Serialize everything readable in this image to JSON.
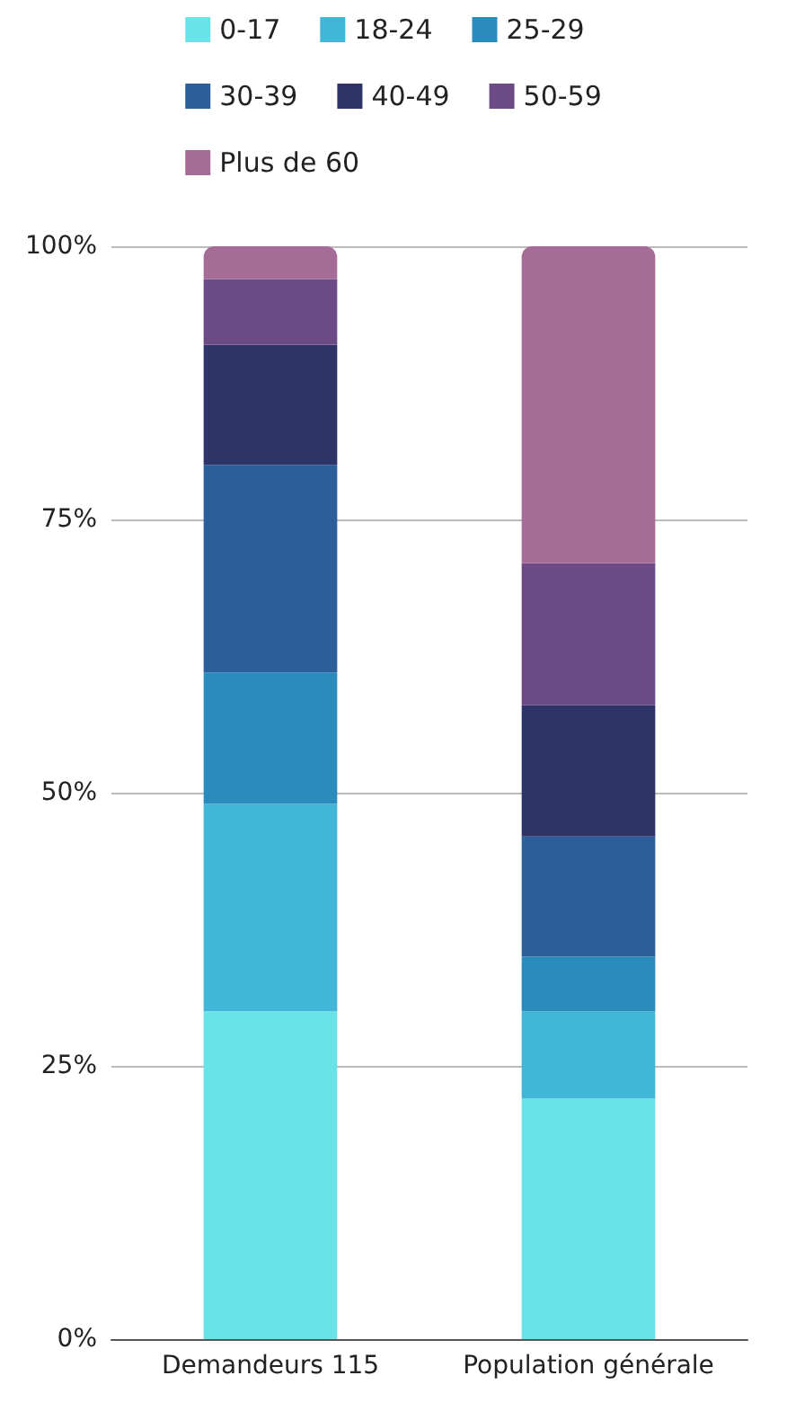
{
  "chart_data": {
    "type": "bar",
    "stacked": true,
    "categories": [
      "Demandeurs 115",
      "Population générale"
    ],
    "series": [
      {
        "name": "0-17",
        "color": "#6ae3e8",
        "values": [
          30,
          22
        ]
      },
      {
        "name": "18-24",
        "color": "#41b6d6",
        "values": [
          19,
          8
        ]
      },
      {
        "name": "25-29",
        "color": "#2a8bbd",
        "values": [
          12,
          5
        ]
      },
      {
        "name": "30-39",
        "color": "#2c5e9a",
        "values": [
          19,
          11
        ]
      },
      {
        "name": "40-49",
        "color": "#2e3468",
        "values": [
          11,
          12
        ]
      },
      {
        "name": "50-59",
        "color": "#6c4a85",
        "values": [
          6,
          13
        ]
      },
      {
        "name": "Plus de 60",
        "color": "#a66c98",
        "values": [
          3,
          29
        ]
      }
    ],
    "ylim": [
      0,
      100
    ],
    "yticks": [
      {
        "value": 0,
        "label": "0%"
      },
      {
        "value": 25,
        "label": "25%"
      },
      {
        "value": 50,
        "label": "50%"
      },
      {
        "value": 75,
        "label": "75%"
      },
      {
        "value": 100,
        "label": "100%"
      }
    ],
    "grid": "y",
    "legend": "top"
  }
}
